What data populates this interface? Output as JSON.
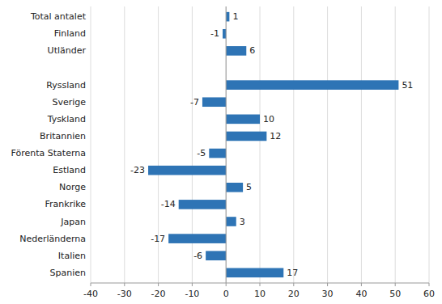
{
  "chart_data": {
    "type": "bar",
    "orientation": "horizontal",
    "categories": [
      "Total antalet",
      "Finland",
      "Utländer",
      null,
      "Ryssland",
      "Sverige",
      "Tyskland",
      "Britannien",
      "Förenta Staterna",
      "Estland",
      "Norge",
      "Frankrike",
      "Japan",
      "Nederländerna",
      "Italien",
      "Spanien"
    ],
    "values": [
      1,
      -1,
      6,
      null,
      51,
      -7,
      10,
      12,
      -5,
      -23,
      5,
      -14,
      3,
      -17,
      -6,
      17
    ],
    "color": "#2E74B5",
    "xlim": [
      -40,
      60
    ],
    "xticks": [
      -40,
      -30,
      -20,
      -10,
      0,
      10,
      20,
      30,
      40,
      50,
      60
    ],
    "grid": true,
    "data_labels": true
  }
}
